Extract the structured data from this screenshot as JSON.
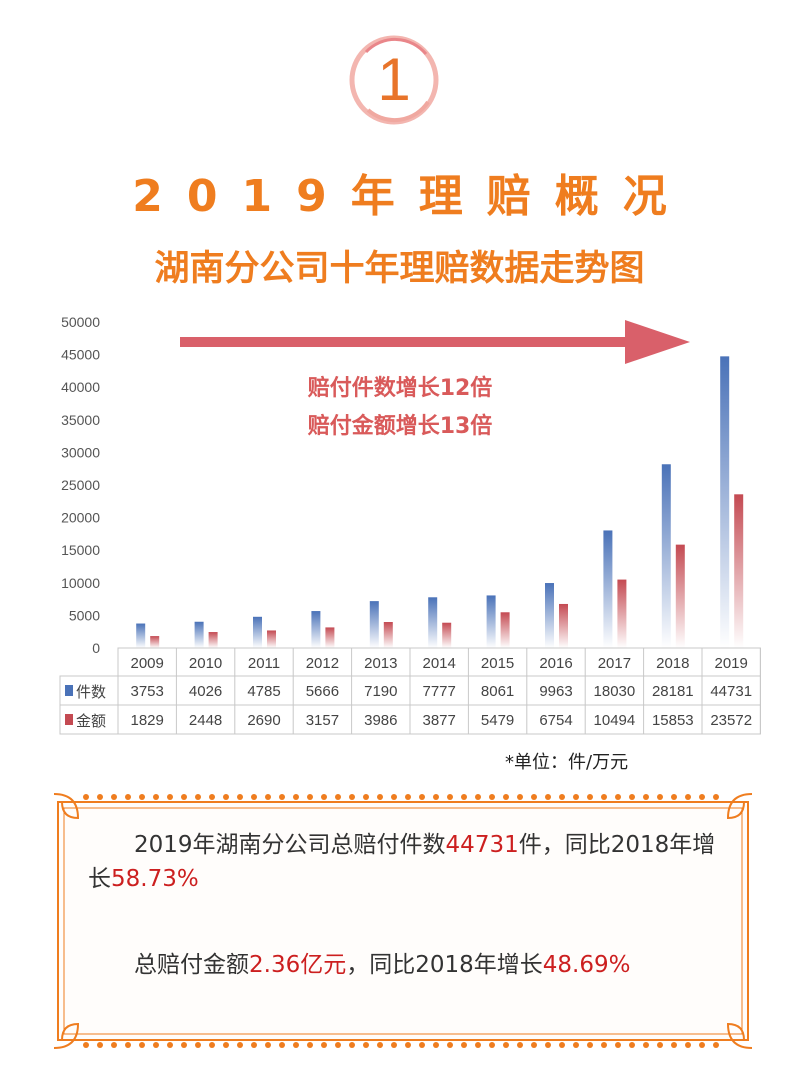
{
  "badge": {
    "number": "1"
  },
  "title": "2019年理赔概况",
  "subtitle": "湖南分公司十年理赔数据走势图",
  "annotation": {
    "line1": "赔付件数增长12倍",
    "line2": "赔付金额增长13倍"
  },
  "unit_note": "*单位：件/万元",
  "summary": {
    "p1_a": "2019年湖南分公司总赔付件数",
    "p1_b": "44731",
    "p1_c": "件，同比2018年增长",
    "p1_d": "58.73%",
    "p2_a": "总赔付金额",
    "p2_b": "2.36亿元",
    "p2_c": "，同比2018年增长",
    "p2_d": "48.69%"
  },
  "colors": {
    "orange": "#ef7d1f",
    "series1": "#4a72b8",
    "series2": "#c44a52",
    "arrow": "#d9606a",
    "highlight": "#cc1f1f"
  },
  "chart_data": {
    "type": "bar",
    "categories": [
      "2009",
      "2010",
      "2011",
      "2012",
      "2013",
      "2014",
      "2015",
      "2016",
      "2017",
      "2018",
      "2019"
    ],
    "series": [
      {
        "name": "件数",
        "values": [
          3753,
          4026,
          4785,
          5666,
          7190,
          7777,
          8061,
          9963,
          18030,
          28181,
          44731
        ]
      },
      {
        "name": "金额",
        "values": [
          1829,
          2448,
          2690,
          3157,
          3986,
          3877,
          5479,
          6754,
          10494,
          15853,
          23572
        ]
      }
    ],
    "ylim": [
      0,
      50000
    ],
    "yticks": [
      0,
      5000,
      10000,
      15000,
      20000,
      25000,
      30000,
      35000,
      40000,
      45000,
      50000
    ],
    "grid": false,
    "data_table": true
  }
}
